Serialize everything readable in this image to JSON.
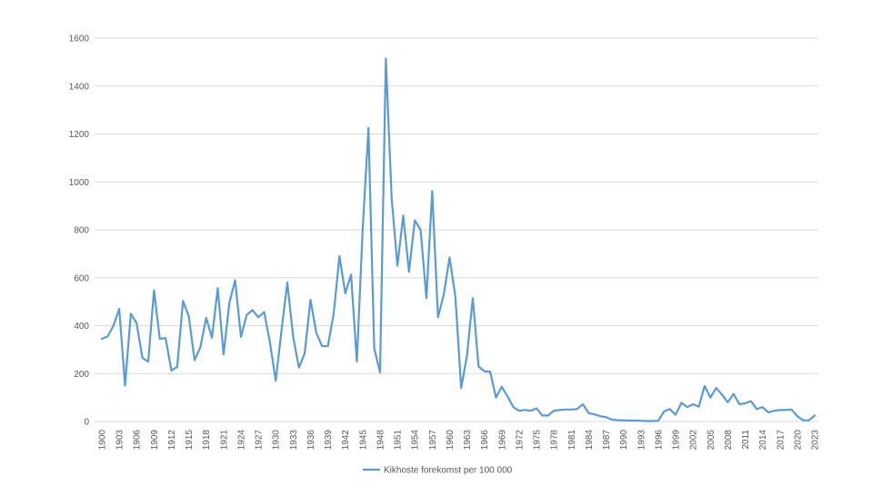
{
  "chart_data": {
    "type": "line",
    "title": "",
    "xlabel": "",
    "ylabel": "",
    "ylim": [
      0,
      1600
    ],
    "yticks": [
      0,
      200,
      400,
      600,
      800,
      1000,
      1200,
      1400,
      1600
    ],
    "xlim": [
      1900,
      2023
    ],
    "xticks": [
      1900,
      1903,
      1906,
      1909,
      1912,
      1915,
      1918,
      1921,
      1924,
      1927,
      1930,
      1933,
      1936,
      1939,
      1942,
      1945,
      1948,
      1951,
      1954,
      1957,
      1960,
      1963,
      1966,
      1969,
      1972,
      1975,
      1978,
      1981,
      1984,
      1987,
      1990,
      1993,
      1996,
      1999,
      2002,
      2005,
      2008,
      2011,
      2014,
      2017,
      2020,
      2023
    ],
    "grid": true,
    "legend_position": "bottom",
    "color": "#5b9bd5",
    "series": [
      {
        "name": "Kikhoste forekomst per 100 000",
        "x": [
          1900,
          1901,
          1902,
          1903,
          1904,
          1905,
          1906,
          1907,
          1908,
          1909,
          1910,
          1911,
          1912,
          1913,
          1914,
          1915,
          1916,
          1917,
          1918,
          1919,
          1920,
          1921,
          1922,
          1923,
          1924,
          1925,
          1926,
          1927,
          1928,
          1929,
          1930,
          1931,
          1932,
          1933,
          1934,
          1935,
          1936,
          1937,
          1938,
          1939,
          1940,
          1941,
          1942,
          1943,
          1944,
          1945,
          1946,
          1947,
          1948,
          1949,
          1950,
          1951,
          1952,
          1953,
          1954,
          1955,
          1956,
          1957,
          1958,
          1959,
          1960,
          1961,
          1962,
          1963,
          1964,
          1965,
          1966,
          1967,
          1968,
          1969,
          1970,
          1971,
          1972,
          1973,
          1974,
          1975,
          1976,
          1977,
          1978,
          1979,
          1980,
          1981,
          1982,
          1983,
          1984,
          1985,
          1986,
          1987,
          1988,
          1989,
          1990,
          1991,
          1992,
          1993,
          1994,
          1995,
          1996,
          1997,
          1998,
          1999,
          2000,
          2001,
          2002,
          2003,
          2004,
          2005,
          2006,
          2007,
          2008,
          2009,
          2010,
          2011,
          2012,
          2013,
          2014,
          2015,
          2016,
          2017,
          2018,
          2019,
          2020,
          2021,
          2022,
          2023
        ],
        "values": [
          345,
          355,
          400,
          470,
          150,
          450,
          410,
          265,
          250,
          548,
          345,
          348,
          213,
          228,
          503,
          440,
          256,
          310,
          433,
          350,
          557,
          280,
          495,
          590,
          353,
          445,
          465,
          435,
          457,
          330,
          170,
          380,
          580,
          355,
          225,
          285,
          508,
          370,
          315,
          315,
          450,
          690,
          535,
          613,
          250,
          800,
          1225,
          305,
          205,
          1515,
          935,
          650,
          860,
          625,
          840,
          800,
          515,
          962,
          435,
          530,
          685,
          520,
          140,
          275,
          515,
          230,
          210,
          208,
          100,
          145,
          105,
          60,
          45,
          48,
          45,
          55,
          25,
          25,
          45,
          48,
          50,
          50,
          52,
          72,
          35,
          30,
          22,
          18,
          8,
          6,
          5,
          4,
          4,
          3,
          2,
          2,
          3,
          42,
          52,
          28,
          78,
          60,
          72,
          62,
          148,
          100,
          140,
          112,
          80,
          115,
          72,
          76,
          85,
          52,
          60,
          38,
          45,
          48,
          48,
          50,
          22,
          5,
          5,
          25
        ]
      }
    ]
  }
}
